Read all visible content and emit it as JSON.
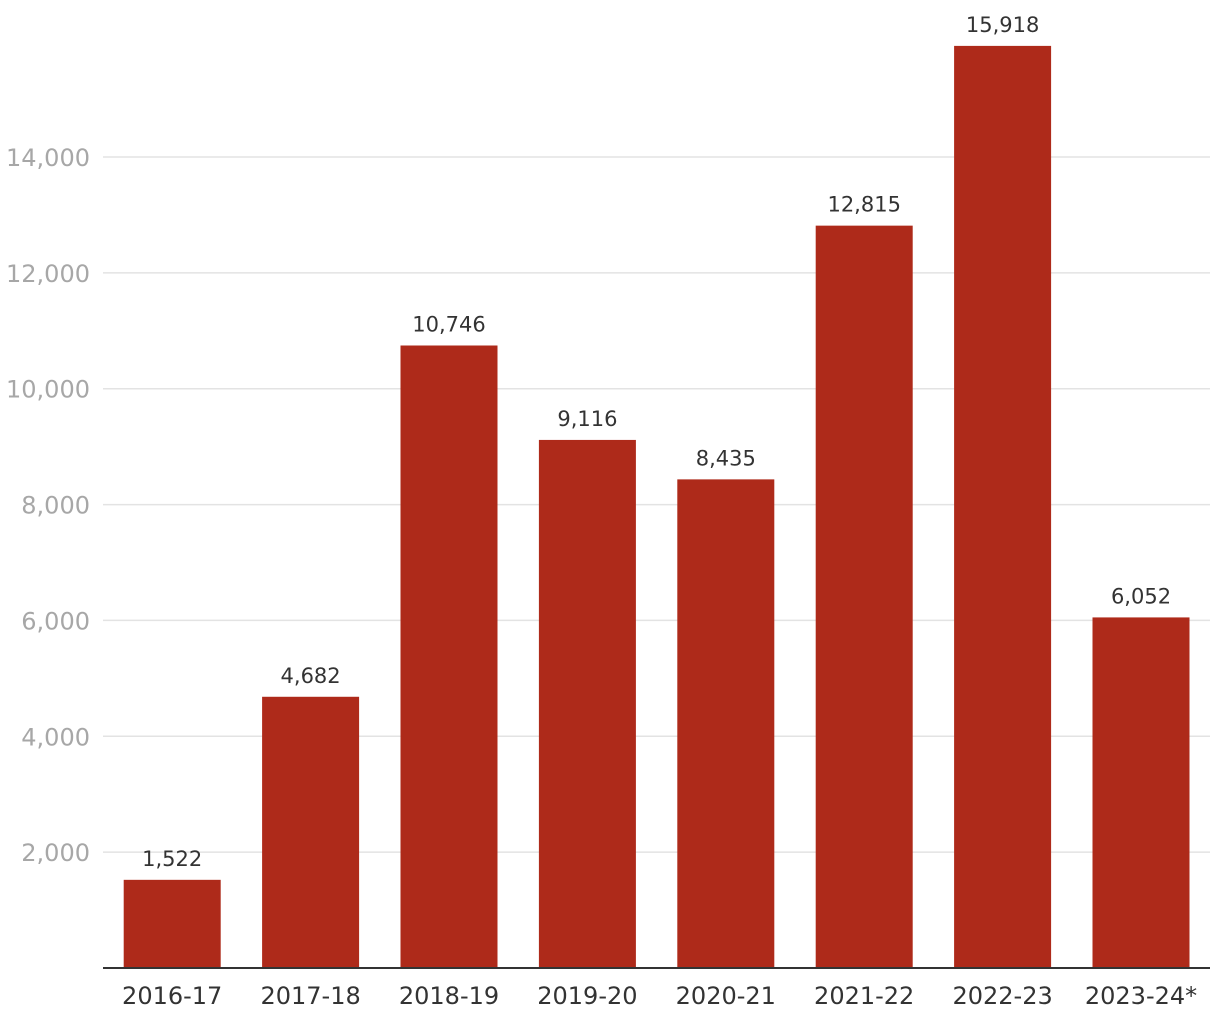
{
  "chart_data": {
    "type": "bar",
    "title": "",
    "xlabel": "",
    "ylabel": "",
    "categories": [
      "2016-17",
      "2017-18",
      "2018-19",
      "2019-20",
      "2020-21",
      "2021-22",
      "2022-23",
      "2023-24*"
    ],
    "values": [
      1522,
      4682,
      10746,
      9116,
      8435,
      12815,
      15918,
      6052
    ],
    "value_labels": [
      "1,522",
      "4,682",
      "10,746",
      "9,116",
      "8,435",
      "12,815",
      "15,918",
      "6,052"
    ],
    "y_ticks": [
      2000,
      4000,
      6000,
      8000,
      10000,
      12000,
      14000
    ],
    "y_tick_labels": [
      "2,000",
      "4,000",
      "6,000",
      "8,000",
      "10,000",
      "12,000",
      "14,000"
    ],
    "ylim": [
      0,
      16000
    ],
    "grid": true,
    "legend": "none",
    "bar_color": "#ae2a1a",
    "gridline_color": "#e3e3e3",
    "axis_label_color": "#a7a7a7",
    "text_color": "#333333"
  }
}
